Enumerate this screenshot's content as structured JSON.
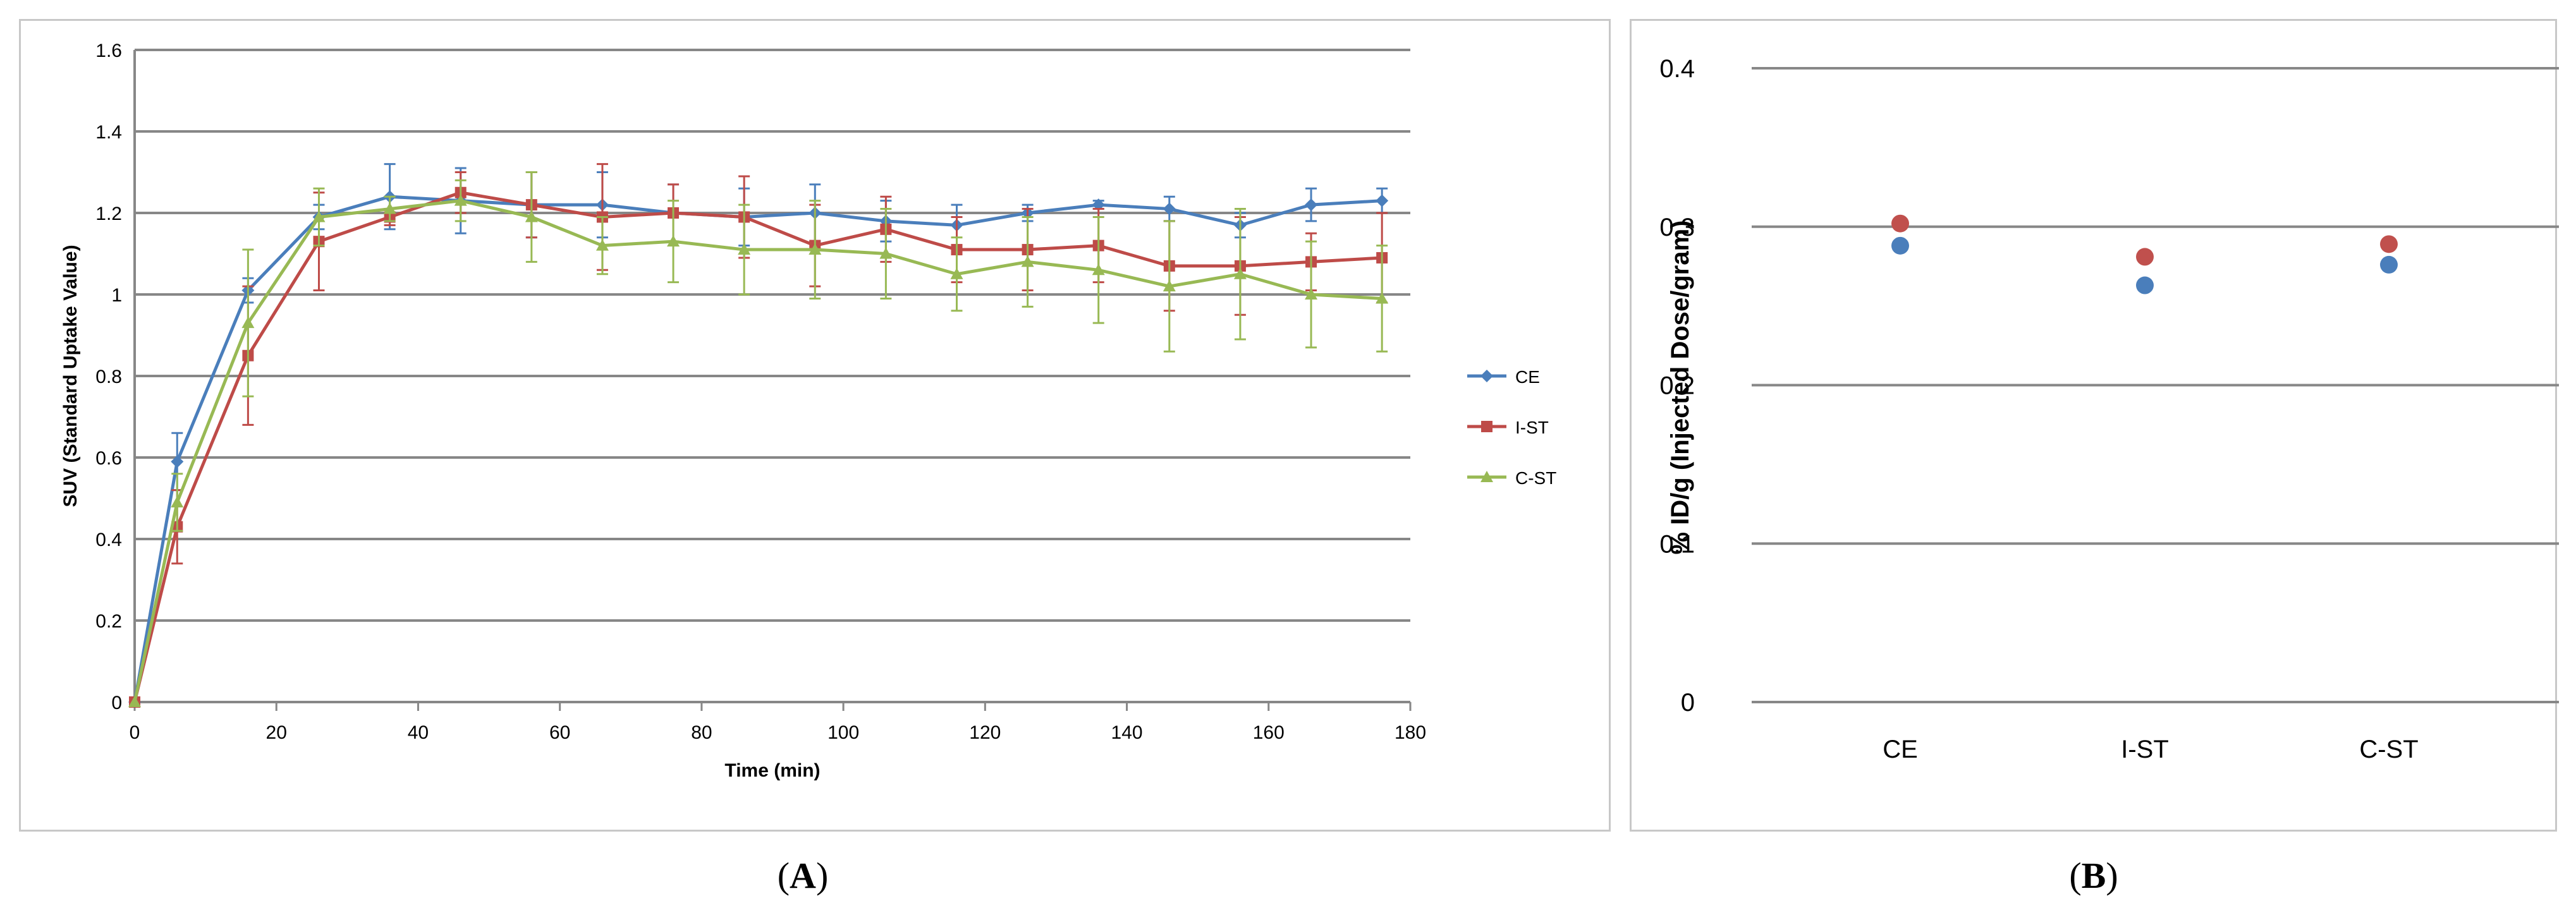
{
  "chart_data": [
    {
      "type": "line",
      "panel_label": "A",
      "xlabel": "Time (min)",
      "ylabel": "SUV (Standard Uptake Value)",
      "xlim": [
        0,
        180
      ],
      "ylim": [
        0,
        1.6
      ],
      "x_ticks": [
        0,
        20,
        40,
        60,
        80,
        100,
        120,
        140,
        160,
        180
      ],
      "y_ticks": [
        0,
        0.2,
        0.4,
        0.6,
        0.8,
        1,
        1.2,
        1.4,
        1.6
      ],
      "y_tick_labels": [
        "0",
        "0.2",
        "0.4",
        "0.6",
        "0.8",
        "1",
        "1.2",
        "1.4",
        "1.6"
      ],
      "grid": "horizontal",
      "legend_position": "right",
      "x": [
        0,
        6,
        16,
        26,
        36,
        46,
        56,
        66,
        76,
        86,
        96,
        106,
        116,
        126,
        136,
        146,
        156,
        166,
        176
      ],
      "series": [
        {
          "name": "CE",
          "color": "#4a7ebb",
          "marker": "diamond",
          "values": [
            0,
            0.59,
            1.01,
            1.19,
            1.24,
            1.23,
            1.22,
            1.22,
            1.2,
            1.19,
            1.2,
            1.18,
            1.17,
            1.2,
            1.22,
            1.21,
            1.17,
            1.22,
            1.23
          ],
          "errors": [
            0,
            0.07,
            0.03,
            0.03,
            0.08,
            0.08,
            0.08,
            0.08,
            0.07,
            0.07,
            0.07,
            0.05,
            0.05,
            0.02,
            0.01,
            0.03,
            0.03,
            0.04,
            0.03
          ]
        },
        {
          "name": "I-ST",
          "color": "#be4b48",
          "marker": "square",
          "values": [
            0,
            0.43,
            0.85,
            1.13,
            1.19,
            1.25,
            1.22,
            1.19,
            1.2,
            1.19,
            1.12,
            1.16,
            1.11,
            1.11,
            1.12,
            1.07,
            1.07,
            1.08,
            1.09
          ],
          "errors": [
            0,
            0.09,
            0.17,
            0.12,
            0.02,
            0.05,
            0.08,
            0.13,
            0.07,
            0.1,
            0.1,
            0.08,
            0.08,
            0.1,
            0.09,
            0.11,
            0.12,
            0.07,
            0.11
          ]
        },
        {
          "name": "C-ST",
          "color": "#98b954",
          "marker": "triangle",
          "values": [
            0,
            0.49,
            0.93,
            1.19,
            1.21,
            1.23,
            1.19,
            1.12,
            1.13,
            1.11,
            1.11,
            1.1,
            1.05,
            1.08,
            1.06,
            1.02,
            1.05,
            1.0,
            0.99
          ],
          "errors": [
            0,
            0.07,
            0.18,
            0.07,
            0.03,
            0.05,
            0.11,
            0.07,
            0.1,
            0.11,
            0.12,
            0.11,
            0.09,
            0.11,
            0.13,
            0.16,
            0.16,
            0.13,
            0.13
          ]
        }
      ]
    },
    {
      "type": "scatter",
      "panel_label": "B",
      "xlabel": "",
      "ylabel": "% ID/g (Injected Dose/gram)",
      "ylim": [
        0,
        0.4
      ],
      "y_ticks": [
        0,
        0.1,
        0.2,
        0.3,
        0.4
      ],
      "y_tick_labels": [
        "0",
        "0.1",
        "0.2",
        "0.3",
        "0.4"
      ],
      "categories": [
        "CE",
        "I-ST",
        "C-ST"
      ],
      "grid": "horizontal",
      "series": [
        {
          "color": "#4a7ebb",
          "values": [
            0.288,
            0.263,
            0.276
          ]
        },
        {
          "color": "#c0504d",
          "values": [
            0.302,
            0.281,
            0.289
          ]
        }
      ]
    }
  ],
  "labels": {
    "a": "A",
    "b": "B"
  }
}
